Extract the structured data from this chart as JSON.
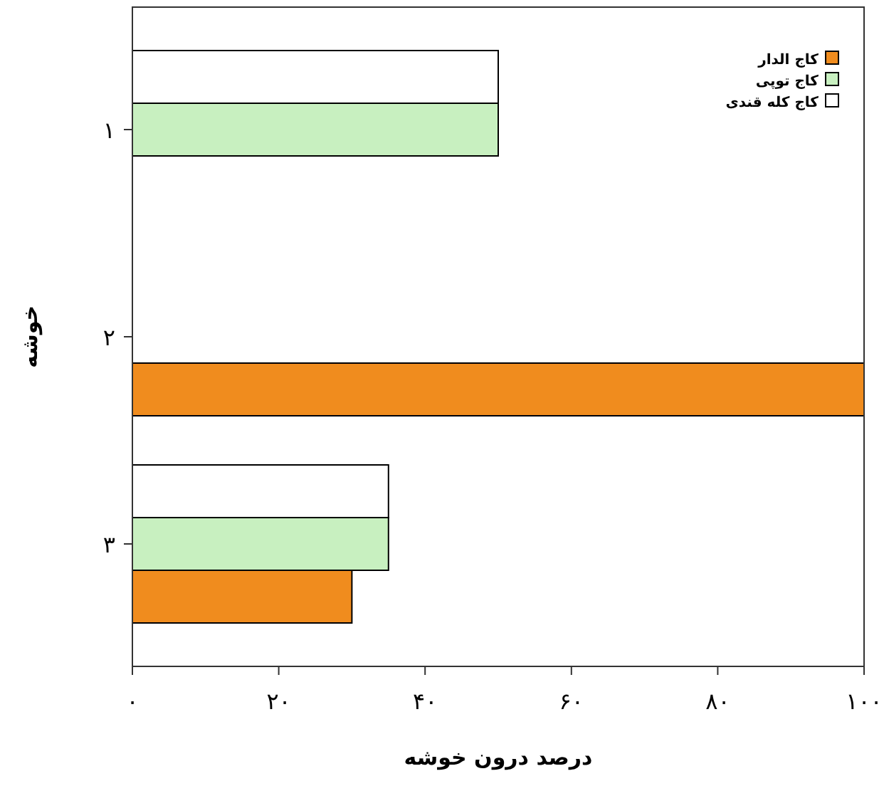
{
  "chart_data": {
    "type": "bar",
    "orientation": "horizontal",
    "xlabel": "درصد درون خوشه",
    "ylabel": "خوشه",
    "categories": [
      "۱",
      "۲",
      "۳"
    ],
    "series": [
      {
        "name": "کاج الدار",
        "color": "#f08c1e",
        "values": [
          0,
          100,
          30
        ]
      },
      {
        "name": "کاج توپی",
        "color": "#c8f0c0",
        "values": [
          50,
          0,
          35
        ]
      },
      {
        "name": "کاج کله قندی",
        "color": "#ffffff",
        "values": [
          50,
          0,
          35
        ]
      }
    ],
    "xlim": [
      0,
      100
    ],
    "xticks": [
      {
        "value": 0,
        "label": "۰"
      },
      {
        "value": 20,
        "label": "۲۰"
      },
      {
        "value": 40,
        "label": "۴۰"
      },
      {
        "value": 60,
        "label": "۶۰"
      },
      {
        "value": 80,
        "label": "۸۰"
      },
      {
        "value": 100,
        "label": "۱۰۰"
      }
    ],
    "legend": "top right",
    "grid": false
  }
}
